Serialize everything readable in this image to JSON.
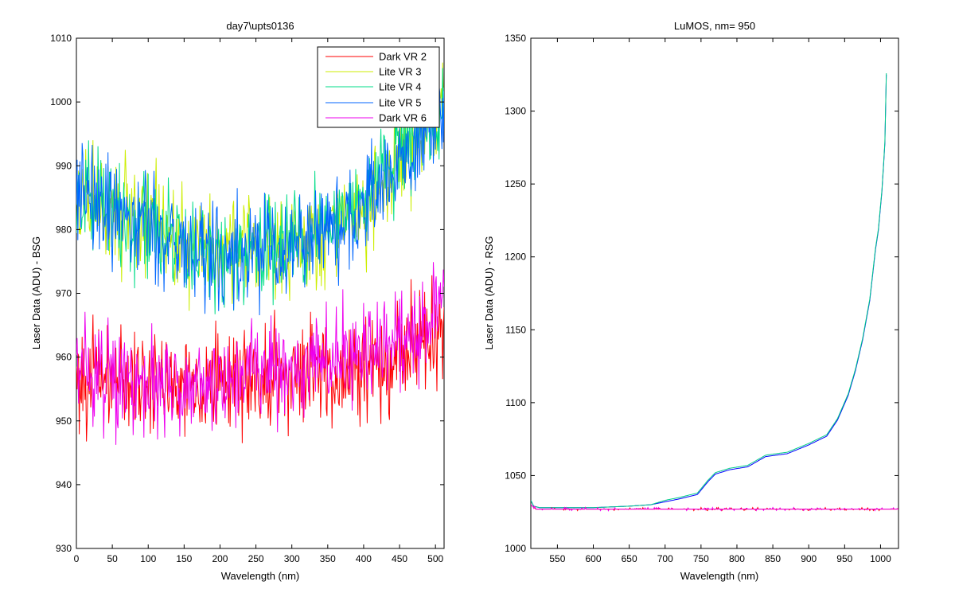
{
  "chart_data": [
    {
      "type": "line",
      "title": "day7\\upts0136",
      "xlabel": "Wavelength (nm)",
      "ylabel": "Laser Data (ADU) - BSG",
      "xlim": [
        0,
        512
      ],
      "ylim": [
        930,
        1010
      ],
      "xticks": [
        0,
        50,
        100,
        150,
        200,
        250,
        300,
        350,
        400,
        450,
        500
      ],
      "yticks": [
        930,
        940,
        950,
        960,
        970,
        980,
        990,
        1000,
        1010
      ],
      "grid": false,
      "legend_position": "top-right",
      "noise": "high-frequency jitter of about ±6 ADU around each series trend",
      "series": [
        {
          "name": "Dark VR 2",
          "color": "#ff0000",
          "x": [
            0,
            50,
            100,
            150,
            200,
            250,
            300,
            350,
            400,
            450,
            500,
            512
          ],
          "y": [
            957,
            957,
            956,
            956,
            956,
            957,
            957,
            958,
            958,
            961,
            964,
            966
          ]
        },
        {
          "name": "Lite VR 3",
          "color": "#ccee00",
          "x": [
            0,
            50,
            100,
            150,
            200,
            250,
            300,
            350,
            400,
            450,
            500,
            512
          ],
          "y": [
            986,
            983,
            981,
            979,
            977,
            978,
            978,
            980,
            984,
            992,
            998,
            1004
          ]
        },
        {
          "name": "Lite VR 4",
          "color": "#00dd88",
          "x": [
            0,
            50,
            100,
            150,
            200,
            250,
            300,
            350,
            400,
            450,
            500,
            512
          ],
          "y": [
            985,
            982,
            980,
            978,
            975,
            977,
            978,
            980,
            985,
            992,
            997,
            998
          ]
        },
        {
          "name": "Lite VR 5",
          "color": "#0066ff",
          "x": [
            0,
            50,
            100,
            150,
            200,
            250,
            300,
            350,
            400,
            450,
            500,
            512
          ],
          "y": [
            985,
            983,
            980,
            977,
            975,
            976,
            977,
            980,
            984,
            990,
            996,
            997
          ]
        },
        {
          "name": "Dark VR 6",
          "color": "#ee00ee",
          "x": [
            0,
            50,
            100,
            150,
            200,
            250,
            300,
            350,
            400,
            450,
            500,
            512
          ],
          "y": [
            957,
            956,
            956,
            956,
            957,
            958,
            958,
            960,
            961,
            963,
            967,
            970
          ]
        }
      ]
    },
    {
      "type": "line",
      "title": "LuMOS, nm= 950",
      "xlabel": "Wavelength (nm)",
      "ylabel": "Laser Data (ADU) - RSG",
      "xlim": [
        513,
        1025
      ],
      "ylim": [
        1000,
        1350
      ],
      "xticks": [
        550,
        600,
        650,
        700,
        750,
        800,
        850,
        900,
        950,
        1000
      ],
      "yticks": [
        1000,
        1050,
        1100,
        1150,
        1200,
        1250,
        1300,
        1350
      ],
      "grid": false,
      "series": [
        {
          "color": "#0000ff",
          "x": [
            513,
            517,
            525,
            600,
            650,
            680,
            700,
            720,
            745,
            760,
            770,
            790,
            815,
            840,
            870,
            900,
            925,
            940,
            955,
            965,
            975,
            985,
            993,
            997,
            1002,
            1006,
            1008
          ],
          "y": [
            1033,
            1029,
            1028,
            1028,
            1029,
            1030,
            1032,
            1034,
            1037,
            1046,
            1051,
            1054,
            1056,
            1063,
            1065,
            1071,
            1077,
            1088,
            1105,
            1122,
            1143,
            1170,
            1205,
            1218,
            1245,
            1278,
            1325
          ]
        },
        {
          "color": "#00cc88",
          "x": [
            513,
            517,
            525,
            600,
            650,
            680,
            700,
            720,
            745,
            760,
            770,
            790,
            815,
            840,
            870,
            900,
            925,
            940,
            955,
            965,
            975,
            985,
            993,
            997,
            1002,
            1006,
            1008
          ],
          "y": [
            1033,
            1029,
            1028,
            1028,
            1029,
            1030,
            1033,
            1035,
            1038,
            1047,
            1052,
            1055,
            1057,
            1064,
            1066,
            1072,
            1078,
            1089,
            1106,
            1123,
            1144,
            1171,
            1206,
            1219,
            1246,
            1279,
            1326
          ]
        },
        {
          "color": "#ff0000",
          "x": [
            513,
            520,
            1025
          ],
          "y": [
            1030,
            1027,
            1027
          ]
        },
        {
          "color": "#ee00ee",
          "x": [
            513,
            520,
            1025
          ],
          "y": [
            1030,
            1027,
            1027
          ]
        }
      ]
    }
  ]
}
